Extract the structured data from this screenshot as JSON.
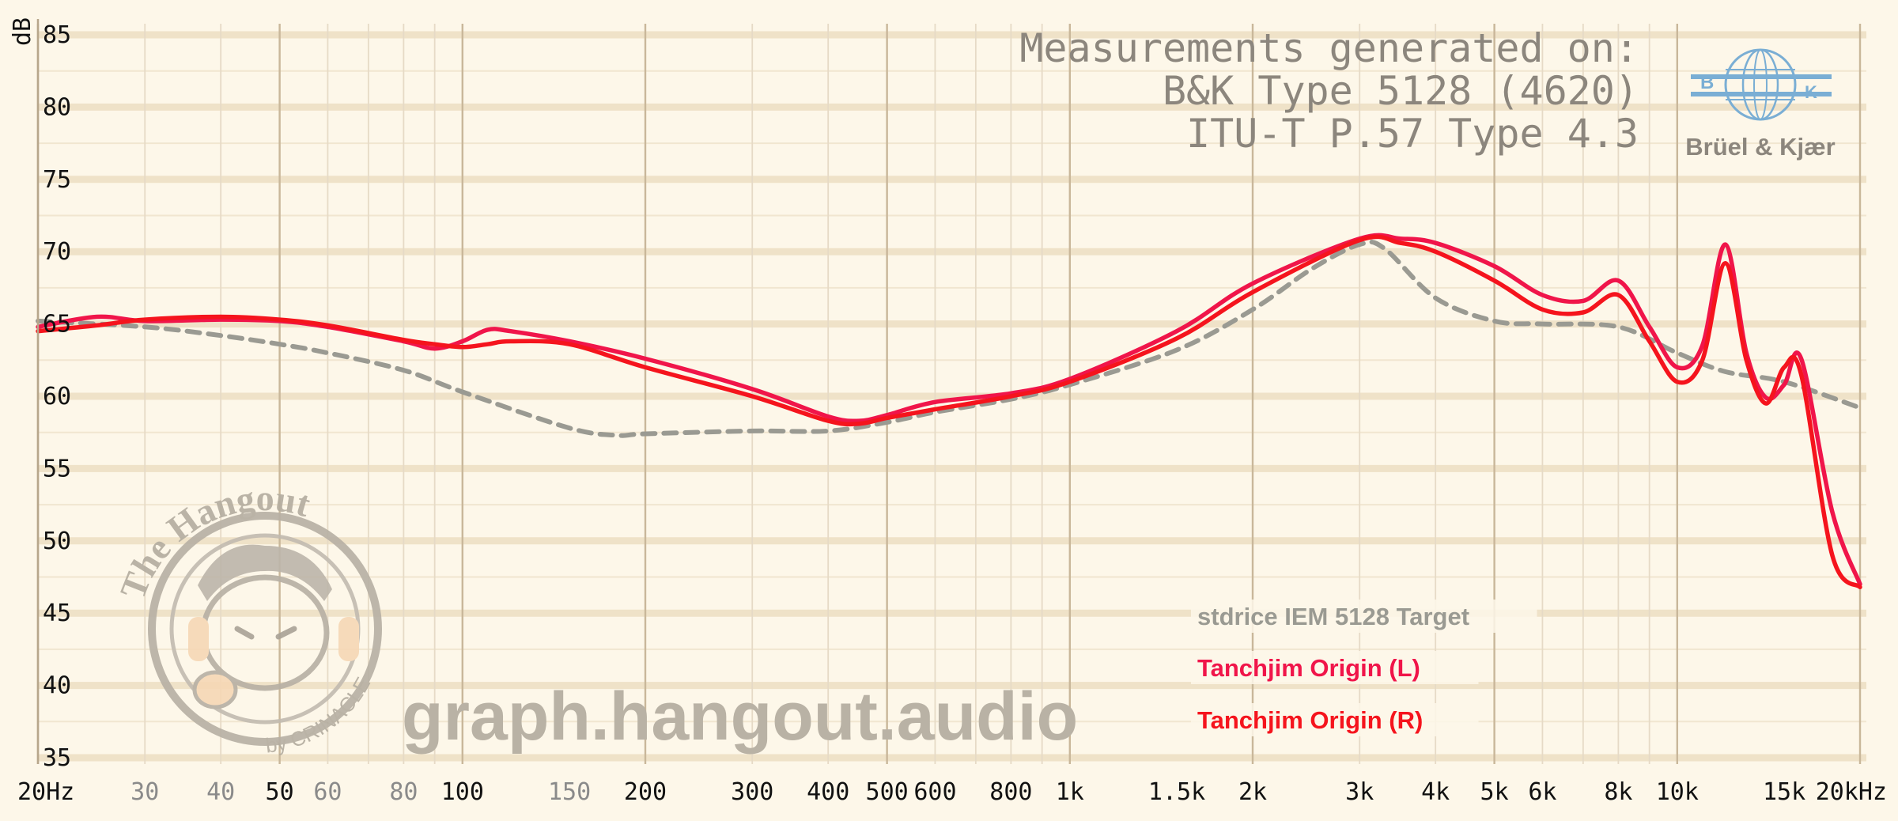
{
  "watermark": {
    "site": "graph.hangout.audio",
    "logo_text": "The Hangout",
    "logo_subtext": "by CRINACLE"
  },
  "annotation": {
    "lines": [
      "Measurements generated on:",
      "B&K Type 5128 (4620)",
      "ITU-T P.57 Type 4.3"
    ]
  },
  "brand": {
    "name": "Brüel & Kjær",
    "logo_letters": [
      "B",
      "K"
    ],
    "color": "#7aaed4"
  },
  "colors": {
    "background": "#fdf7e9",
    "target": "#9a9a92",
    "left": "#f0154a",
    "right": "#f5141d"
  },
  "chart_data": {
    "type": "line",
    "title": "",
    "xlabel": "",
    "ylabel": "dB",
    "xscale": "log",
    "xlim": [
      20,
      20000
    ],
    "ylim": [
      35,
      85
    ],
    "grid": true,
    "legend_position": "bottom-right",
    "y_ticks": [
      35,
      40,
      45,
      50,
      55,
      60,
      65,
      70,
      75,
      80,
      85
    ],
    "x_ticks": [
      {
        "value": 20,
        "label": "20Hz",
        "major": true
      },
      {
        "value": 30,
        "label": "30",
        "major": false
      },
      {
        "value": 40,
        "label": "40",
        "major": false
      },
      {
        "value": 50,
        "label": "50",
        "major": true
      },
      {
        "value": 60,
        "label": "60",
        "major": false
      },
      {
        "value": 80,
        "label": "80",
        "major": false
      },
      {
        "value": 100,
        "label": "100",
        "major": true
      },
      {
        "value": 150,
        "label": "150",
        "major": false
      },
      {
        "value": 200,
        "label": "200",
        "major": true
      },
      {
        "value": 300,
        "label": "300",
        "major": true
      },
      {
        "value": 400,
        "label": "400",
        "major": true
      },
      {
        "value": 500,
        "label": "500",
        "major": true
      },
      {
        "value": 600,
        "label": "600",
        "major": true
      },
      {
        "value": 800,
        "label": "800",
        "major": true
      },
      {
        "value": 1000,
        "label": "1k",
        "major": true
      },
      {
        "value": 1500,
        "label": "1.5k",
        "major": true
      },
      {
        "value": 2000,
        "label": "2k",
        "major": true
      },
      {
        "value": 3000,
        "label": "3k",
        "major": true
      },
      {
        "value": 4000,
        "label": "4k",
        "major": true
      },
      {
        "value": 5000,
        "label": "5k",
        "major": true
      },
      {
        "value": 6000,
        "label": "6k",
        "major": true
      },
      {
        "value": 8000,
        "label": "8k",
        "major": true
      },
      {
        "value": 10000,
        "label": "10k",
        "major": true
      },
      {
        "value": 15000,
        "label": "15k",
        "major": true
      },
      {
        "value": 20000,
        "label": "20kHz",
        "major": true
      }
    ],
    "series": [
      {
        "name": "stdrice IEM 5128 Target",
        "style": "dashed",
        "x": [
          20,
          30,
          40,
          50,
          60,
          80,
          100,
          150,
          180,
          200,
          300,
          400,
          500,
          600,
          800,
          1000,
          1500,
          2000,
          2500,
          3000,
          3300,
          4000,
          5000,
          6000,
          8000,
          10000,
          12000,
          15000,
          20000
        ],
        "y": [
          65.2,
          64.8,
          64.2,
          63.6,
          63.0,
          61.8,
          60.3,
          57.8,
          57.3,
          57.4,
          57.6,
          57.6,
          58.2,
          58.9,
          59.8,
          60.8,
          63.2,
          66.0,
          68.8,
          70.5,
          70.2,
          66.8,
          65.2,
          65.0,
          64.8,
          63.0,
          61.7,
          61.0,
          59.2
        ]
      },
      {
        "name": "Tanchjim Origin (L)",
        "style": "solid",
        "x": [
          20,
          25,
          30,
          40,
          50,
          60,
          80,
          90,
          100,
          110,
          120,
          150,
          200,
          300,
          400,
          450,
          500,
          600,
          800,
          1000,
          1500,
          2000,
          3000,
          3500,
          4000,
          5000,
          6000,
          7000,
          8000,
          9000,
          10000,
          11000,
          12000,
          13000,
          14000,
          15000,
          16000,
          18000,
          20000
        ],
        "y": [
          64.8,
          65.5,
          65.2,
          65.3,
          65.2,
          64.8,
          63.8,
          63.3,
          63.8,
          64.6,
          64.5,
          63.8,
          62.6,
          60.5,
          58.6,
          58.3,
          58.7,
          59.6,
          60.2,
          61.2,
          64.5,
          67.8,
          70.9,
          70.9,
          70.6,
          69.0,
          67.0,
          66.6,
          68.0,
          64.8,
          62.0,
          63.5,
          70.5,
          63.0,
          59.9,
          60.8,
          62.6,
          52.0,
          47.0
        ]
      },
      {
        "name": "Tanchjim Origin (R)",
        "style": "solid",
        "x": [
          20,
          25,
          30,
          40,
          50,
          60,
          80,
          90,
          100,
          110,
          120,
          150,
          200,
          300,
          400,
          450,
          500,
          600,
          800,
          1000,
          1500,
          2000,
          3000,
          3500,
          4000,
          5000,
          6000,
          7000,
          8000,
          9000,
          10000,
          11000,
          12000,
          13000,
          14000,
          15000,
          16000,
          18000,
          20000
        ],
        "y": [
          64.5,
          64.9,
          65.3,
          65.5,
          65.3,
          64.9,
          63.9,
          63.6,
          63.4,
          63.6,
          63.8,
          63.6,
          62.0,
          60.0,
          58.3,
          58.1,
          58.5,
          59.1,
          60.0,
          61.0,
          64.0,
          67.2,
          70.8,
          70.6,
          70.0,
          68.0,
          66.0,
          65.8,
          67.0,
          63.8,
          61.0,
          62.5,
          69.2,
          62.5,
          59.5,
          62.0,
          61.5,
          49.0,
          46.8
        ]
      }
    ]
  }
}
